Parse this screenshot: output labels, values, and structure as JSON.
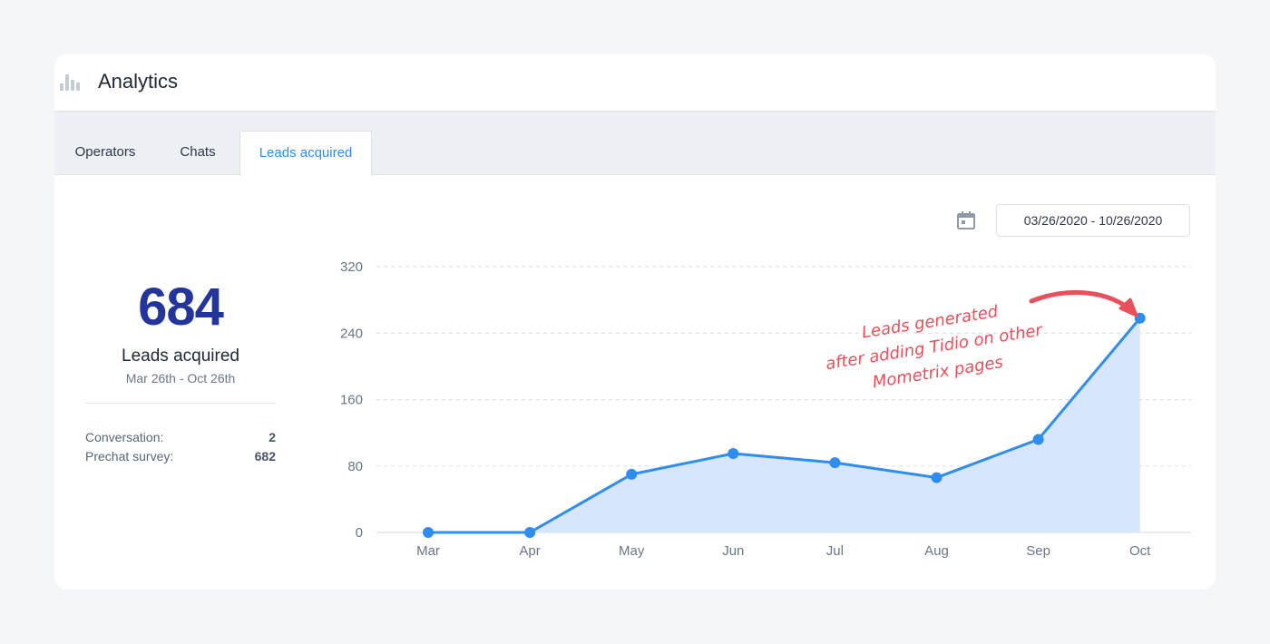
{
  "header": {
    "title": "Analytics",
    "icon": "bar-chart-icon"
  },
  "tabs": [
    {
      "label": "Operators",
      "active": false
    },
    {
      "label": "Chats",
      "active": false
    },
    {
      "label": "Leads acquired",
      "active": true
    }
  ],
  "summary": {
    "total": "684",
    "label": "Leads acquired",
    "range": "Mar 26th - Oct 26th",
    "breakdown": [
      {
        "label": "Conversation:",
        "value": "2"
      },
      {
        "label": "Prechat survey:",
        "value": "682"
      }
    ]
  },
  "date_picker": {
    "value": "03/26/2020 - 10/26/2020",
    "icon": "calendar-icon"
  },
  "annotation": {
    "lines": [
      "Leads generated",
      "after adding Tidio on other",
      "Mometrix pages"
    ]
  },
  "colors": {
    "line": "#2f8cf0",
    "fill": "#d7e6fc",
    "accent_number": "#23359a",
    "annotation": "#e8505b",
    "active_tab": "#2f8cf0"
  },
  "chart_data": {
    "type": "area",
    "categories": [
      "Mar",
      "Apr",
      "May",
      "Jun",
      "Jul",
      "Aug",
      "Sep",
      "Oct"
    ],
    "values": [
      0,
      0,
      70,
      95,
      84,
      66,
      112,
      258
    ],
    "ylim": [
      0,
      320
    ],
    "yticks": [
      0,
      80,
      160,
      240,
      320
    ],
    "grid": true,
    "title": "",
    "xlabel": "",
    "ylabel": ""
  }
}
